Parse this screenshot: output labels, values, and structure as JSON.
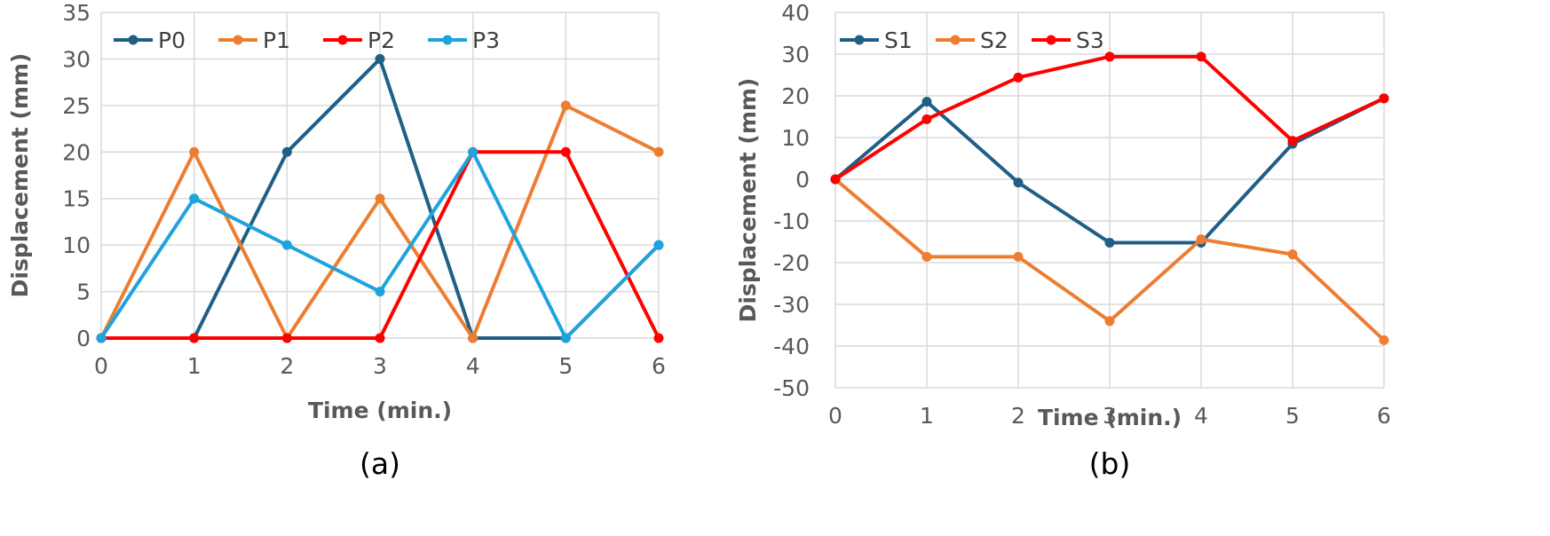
{
  "chart_data": [
    {
      "panel": "a",
      "type": "line",
      "caption": "(a)",
      "xlabel": "Time (min.)",
      "ylabel": "Displacement (mm)",
      "x": [
        0,
        1,
        2,
        3,
        4,
        5,
        6
      ],
      "xticks": [
        "0",
        "1",
        "2",
        "3",
        "4",
        "5",
        "6"
      ],
      "xlim": [
        0,
        6
      ],
      "ylim": [
        0,
        35
      ],
      "yticks": [
        0,
        5,
        10,
        15,
        20,
        25,
        30,
        35
      ],
      "grid": true,
      "legend_position": "top-left",
      "series": [
        {
          "name": "P0",
          "color": "#1f5f86",
          "values": [
            0,
            0,
            20,
            30,
            0,
            0,
            10
          ]
        },
        {
          "name": "P1",
          "color": "#ed7d31",
          "values": [
            0,
            20,
            0,
            15,
            0,
            25,
            20
          ]
        },
        {
          "name": "P2",
          "color": "#ff0000",
          "values": [
            0,
            0,
            0,
            0,
            20,
            20,
            0
          ]
        },
        {
          "name": "P3",
          "color": "#1fa3dd",
          "values": [
            0,
            15,
            10,
            5,
            20,
            0,
            10
          ]
        }
      ]
    },
    {
      "panel": "b",
      "type": "line",
      "caption": "(b)",
      "xlabel": "Time (min.)",
      "ylabel": "Displacement (mm)",
      "x": [
        0,
        1,
        2,
        3,
        4,
        5,
        6
      ],
      "xticks": [
        "0",
        "1",
        "2",
        "3",
        "4",
        "5",
        "6"
      ],
      "xlim": [
        0,
        6
      ],
      "ylim": [
        -50,
        40
      ],
      "yticks": [
        -50,
        -40,
        -30,
        -20,
        -10,
        0,
        10,
        20,
        30,
        40
      ],
      "grid": true,
      "legend_position": "top-left",
      "series": [
        {
          "name": "S1",
          "color": "#1f5f86",
          "values": [
            0,
            18.6,
            -0.8,
            -15.2,
            -15.2,
            8.5,
            19.4
          ]
        },
        {
          "name": "S2",
          "color": "#ed7d31",
          "values": [
            0,
            -18.6,
            -18.6,
            -34,
            -14.4,
            -18,
            -38.6
          ]
        },
        {
          "name": "S3",
          "color": "#ff0000",
          "values": [
            0,
            14.4,
            24.4,
            29.4,
            29.4,
            9.2,
            19.4
          ]
        }
      ]
    }
  ]
}
